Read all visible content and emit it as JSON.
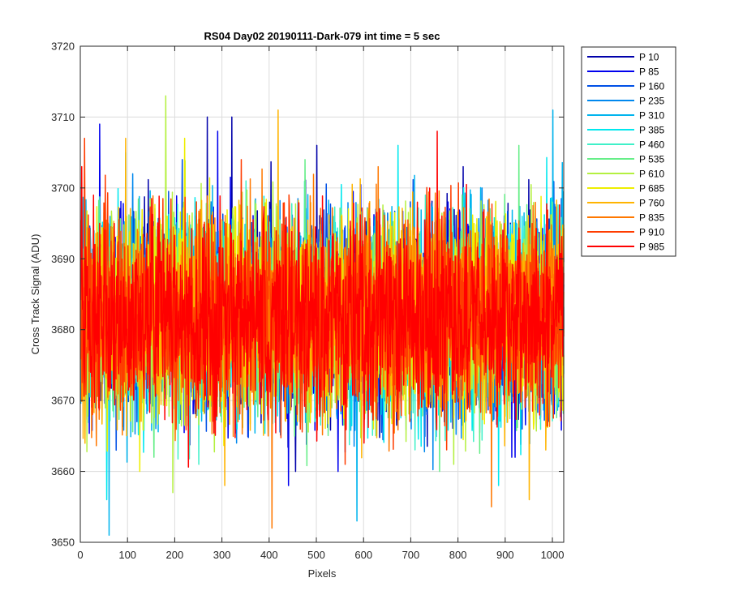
{
  "chart_data": {
    "type": "line",
    "title": "RS04 Day02 20190111-Dark-079 int time = 5 sec",
    "xlabel": "Pixels",
    "ylabel": "Cross Track Signal (ADU)",
    "xlim": [
      0,
      1024
    ],
    "ylim": [
      3650,
      3720
    ],
    "xticks": [
      0,
      100,
      200,
      300,
      400,
      500,
      600,
      700,
      800,
      900,
      1000
    ],
    "yticks": [
      3650,
      3660,
      3670,
      3680,
      3690,
      3700,
      3710,
      3720
    ],
    "xtick_labels": [
      "0",
      "100",
      "200",
      "300",
      "400",
      "500",
      "600",
      "700",
      "800",
      "900",
      "1000"
    ],
    "ytick_labels": [
      "3650",
      "3660",
      "3670",
      "3680",
      "3690",
      "3700",
      "3710",
      "3720"
    ],
    "grid": true,
    "legend_position": "outside-top-right",
    "series": [
      {
        "name": "P 10",
        "color": "#0000aa",
        "mean": 3682,
        "noise": 7,
        "extremes": [
          [
            268,
            3710
          ],
          [
            320,
            3710
          ],
          [
            500,
            3706
          ],
          [
            810,
            3703
          ],
          [
            455,
            3660
          ]
        ]
      },
      {
        "name": "P 85",
        "color": "#0000ee",
        "mean": 3682,
        "noise": 7,
        "extremes": [
          [
            40,
            3709
          ],
          [
            290,
            3708
          ],
          [
            440,
            3658
          ],
          [
            545,
            3660
          ],
          [
            920,
            3662
          ]
        ]
      },
      {
        "name": "P 160",
        "color": "#0050e6",
        "mean": 3682,
        "noise": 7,
        "extremes": [
          [
            215,
            3704
          ],
          [
            625,
            3697
          ],
          [
            75,
            3663
          ],
          [
            770,
            3667
          ]
        ]
      },
      {
        "name": "P 235",
        "color": "#0088ee",
        "mean": 3682,
        "noise": 7,
        "extremes": [
          [
            110,
            3702
          ],
          [
            850,
            3700
          ],
          [
            330,
            3664
          ],
          [
            700,
            3666
          ]
        ]
      },
      {
        "name": "P 310",
        "color": "#00b4ee",
        "mean": 3682,
        "noise": 7,
        "extremes": [
          [
            1000,
            3711
          ],
          [
            60,
            3651
          ],
          [
            585,
            3653
          ]
        ]
      },
      {
        "name": "P 385",
        "color": "#00e8ee",
        "mean": 3682,
        "noise": 7,
        "extremes": [
          [
            672,
            3706
          ],
          [
            95,
            3705
          ],
          [
            55,
            3656
          ],
          [
            885,
            3658
          ]
        ]
      },
      {
        "name": "P 460",
        "color": "#3ff0c8",
        "mean": 3682,
        "noise": 7,
        "extremes": [
          [
            350,
            3701
          ],
          [
            730,
            3699
          ],
          [
            250,
            3661
          ]
        ]
      },
      {
        "name": "P 535",
        "color": "#66ee88",
        "mean": 3682,
        "noise": 7,
        "extremes": [
          [
            928,
            3706
          ],
          [
            475,
            3704
          ],
          [
            155,
            3662
          ],
          [
            760,
            3660
          ]
        ]
      },
      {
        "name": "P 610",
        "color": "#b4f040",
        "mean": 3682,
        "noise": 7,
        "extremes": [
          [
            180,
            3713
          ],
          [
            195,
            3657
          ],
          [
            790,
            3661
          ]
        ]
      },
      {
        "name": "P 685",
        "color": "#eeee00",
        "mean": 3682,
        "noise": 7,
        "extremes": [
          [
            220,
            3707
          ],
          [
            125,
            3660
          ],
          [
            620,
            3666
          ]
        ]
      },
      {
        "name": "P 760",
        "color": "#ffb400",
        "mean": 3682,
        "noise": 7,
        "extremes": [
          [
            418,
            3711
          ],
          [
            95,
            3707
          ],
          [
            950,
            3656
          ],
          [
            305,
            3658
          ]
        ]
      },
      {
        "name": "P 835",
        "color": "#ff7800",
        "mean": 3682,
        "noise": 7,
        "extremes": [
          [
            630,
            3703
          ],
          [
            405,
            3652
          ],
          [
            870,
            3655
          ]
        ]
      },
      {
        "name": "P 910",
        "color": "#ff3c00",
        "mean": 3682,
        "noise": 7,
        "extremes": [
          [
            8,
            3707
          ],
          [
            340,
            3704
          ],
          [
            560,
            3661
          ]
        ]
      },
      {
        "name": "P 985",
        "color": "#ff0000",
        "mean": 3682,
        "noise": 7,
        "extremes": [
          [
            755,
            3708
          ],
          [
            2,
            3703
          ],
          [
            600,
            3664
          ]
        ]
      }
    ]
  }
}
